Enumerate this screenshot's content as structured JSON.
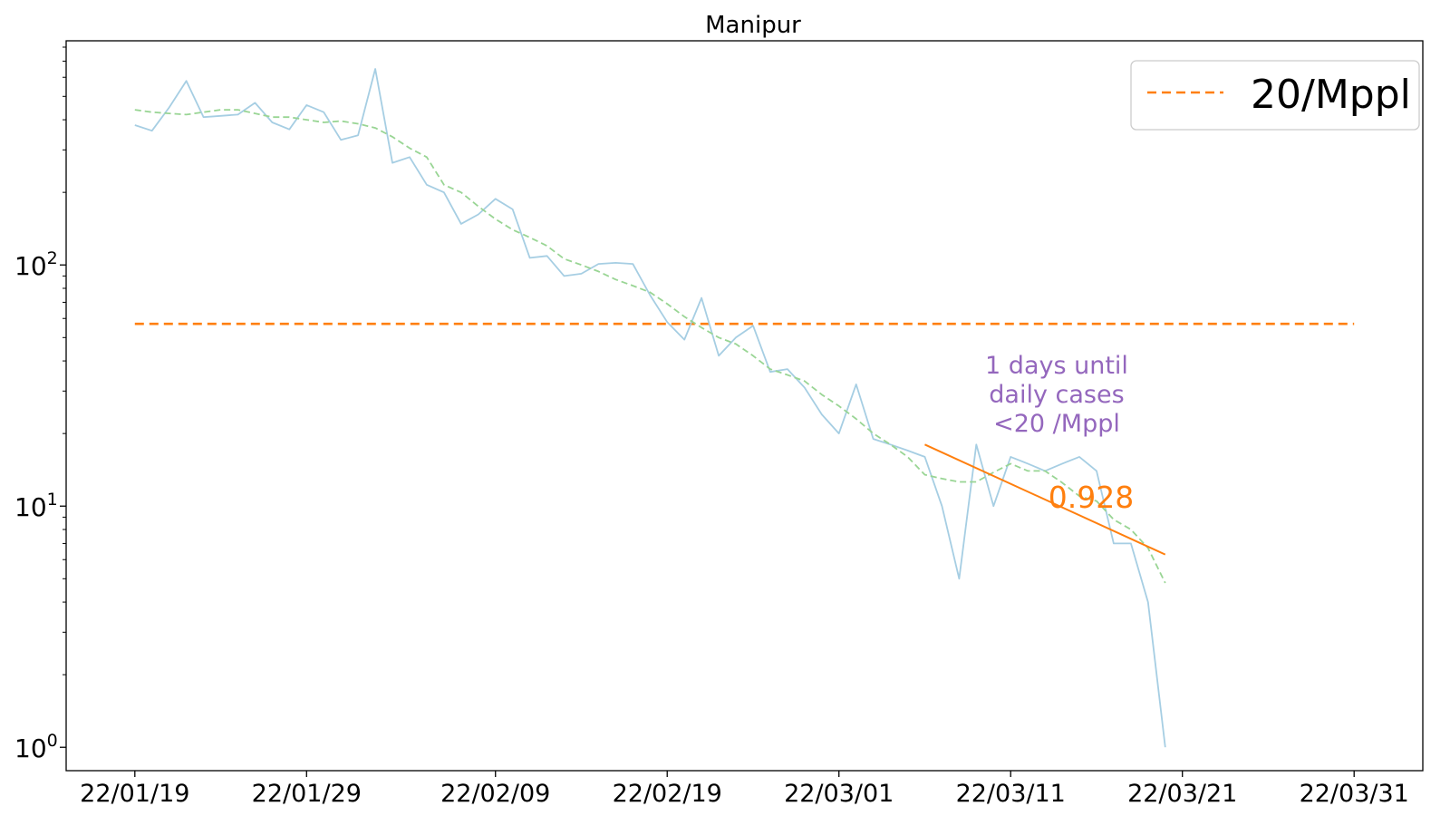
{
  "chart_data": {
    "type": "line",
    "title": "Manipur",
    "xlabel": "",
    "ylabel": "",
    "y_scale": "log",
    "ylim": [
      0.8,
      850
    ],
    "xlim": [
      "2022-01-15",
      "2022-04-04"
    ],
    "x_ticks": [
      {
        "date": "2022-01-19",
        "label": "22/01/19"
      },
      {
        "date": "2022-01-29",
        "label": "22/01/29"
      },
      {
        "date": "2022-02-09",
        "label": "22/02/09"
      },
      {
        "date": "2022-02-19",
        "label": "22/02/19"
      },
      {
        "date": "2022-03-01",
        "label": "22/03/01"
      },
      {
        "date": "2022-03-11",
        "label": "22/03/11"
      },
      {
        "date": "2022-03-21",
        "label": "22/03/21"
      },
      {
        "date": "2022-03-31",
        "label": "22/03/31"
      }
    ],
    "y_ticks": [
      {
        "value": 1,
        "base": "10",
        "exp": "0"
      },
      {
        "value": 10,
        "base": "10",
        "exp": "1"
      },
      {
        "value": 100,
        "base": "10",
        "exp": "2"
      }
    ],
    "grid": false,
    "legend": {
      "position": "top-right",
      "entries": [
        {
          "label": "20/Mppl",
          "color": "#ff7f0e",
          "style": "dashed"
        }
      ]
    },
    "start_date": "2022-01-19",
    "series": [
      {
        "kind": "daily",
        "color": "#a6cee3",
        "style": "solid",
        "values": [
          380,
          360,
          450,
          580,
          410,
          415,
          420,
          470,
          390,
          365,
          460,
          430,
          330,
          345,
          650,
          265,
          280,
          215,
          200,
          148,
          162,
          188,
          170,
          107,
          109,
          90,
          92,
          101,
          102,
          101,
          75,
          58,
          49,
          73,
          42,
          50,
          56,
          36,
          37,
          31,
          24,
          20,
          32,
          19,
          18,
          17,
          16,
          10,
          5,
          18,
          10,
          16,
          15,
          14,
          15,
          16,
          14,
          7,
          7,
          4,
          1
        ]
      },
      {
        "kind": "smoothed",
        "color": "#99d594",
        "style": "dashed",
        "values": [
          440,
          430,
          425,
          420,
          430,
          440,
          440,
          425,
          410,
          410,
          400,
          390,
          395,
          385,
          370,
          340,
          305,
          280,
          215,
          200,
          175,
          155,
          140,
          130,
          120,
          106,
          100,
          94,
          87,
          82,
          77,
          69,
          61,
          55,
          50,
          47,
          42,
          37,
          35,
          33,
          29,
          26,
          23,
          20,
          18,
          16,
          13.5,
          13,
          12.6,
          12.6,
          13.8,
          15,
          14,
          14,
          12.5,
          11,
          10.5,
          8.8,
          8,
          6.7,
          4.8
        ]
      }
    ],
    "threshold": {
      "label": "20/Mppl",
      "value": 57,
      "color": "#ff7f0e",
      "from": "2022-01-19",
      "to": "2022-03-31"
    },
    "trend": {
      "from": "2022-03-06",
      "to": "2022-03-20",
      "y_from": 18,
      "y_to": 6.3,
      "color": "#ff7f0e",
      "label": "0.928"
    },
    "annotation": {
      "lines": [
        "1 days until",
        "daily cases",
        "<20 /Mppl"
      ],
      "color": "#9467bd"
    }
  }
}
